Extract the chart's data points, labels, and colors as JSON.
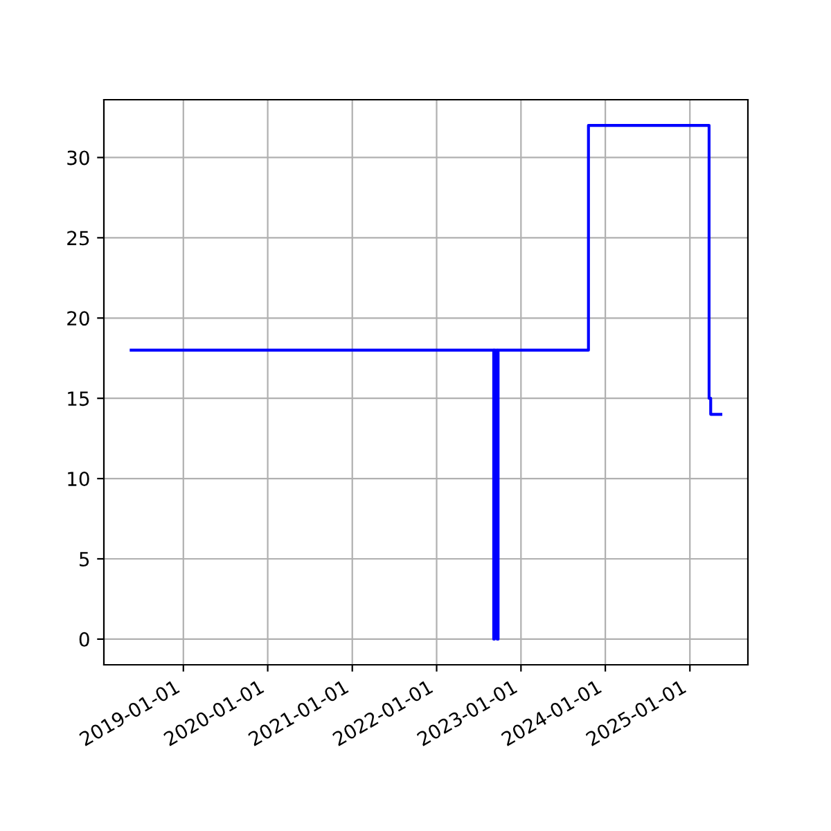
{
  "chart_data": {
    "type": "step",
    "x": [
      "2018-05-20",
      "2022-09-05",
      "2022-09-08",
      "2022-09-20",
      "2022-09-24",
      "2023-10-20",
      "2025-03-25",
      "2025-04-01",
      "2025-05-15"
    ],
    "series": [
      {
        "color": "#0000ff",
        "values": [
          18,
          0,
          18,
          0,
          18,
          32,
          15,
          14,
          14
        ]
      }
    ],
    "xlim": [
      "2018-01-22",
      "2025-09-09"
    ],
    "xticks": [
      "2019-01-01",
      "2020-01-01",
      "2021-01-01",
      "2022-01-01",
      "2023-01-01",
      "2024-01-01",
      "2025-01-01"
    ],
    "ylim": [
      -1.6,
      33.6
    ],
    "yticks": [
      0,
      5,
      10,
      15,
      20,
      25,
      30
    ],
    "grid": true,
    "legend": false
  }
}
